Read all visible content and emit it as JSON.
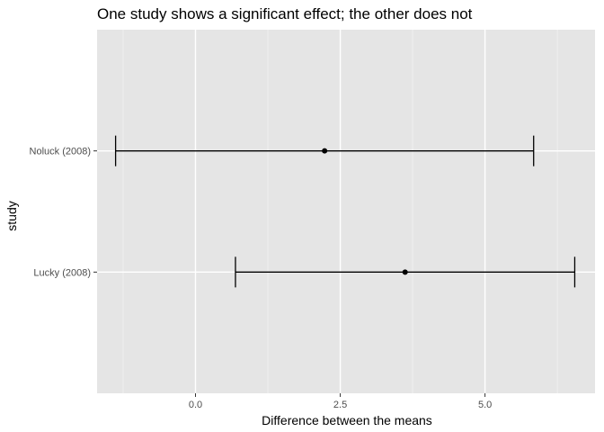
{
  "chart_data": {
    "type": "errorbar",
    "title": "One study shows a significant effect; the other does not",
    "xlabel": "Difference between the means",
    "ylabel": "study",
    "xlim": [
      -1.7,
      6.9
    ],
    "x_ticks": [
      0.0,
      2.5,
      5.0
    ],
    "x_tick_labels": [
      "0.0",
      "2.5",
      "5.0"
    ],
    "categories": [
      "Lucky (2008)",
      "Noluck (2008)"
    ],
    "series": [
      {
        "points": [
          {
            "study": "Noluck (2008)",
            "estimate": 2.23,
            "lower": -1.38,
            "upper": 5.84
          },
          {
            "study": "Lucky (2008)",
            "estimate": 3.62,
            "lower": 0.69,
            "upper": 6.55
          }
        ]
      }
    ],
    "grid": true,
    "colors": {
      "panel": "#e5e5e5",
      "grid_major": "#ffffff",
      "grid_minor": "#f2f2f2",
      "marks": "#000000",
      "tick_text": "#4d4d4d"
    }
  }
}
